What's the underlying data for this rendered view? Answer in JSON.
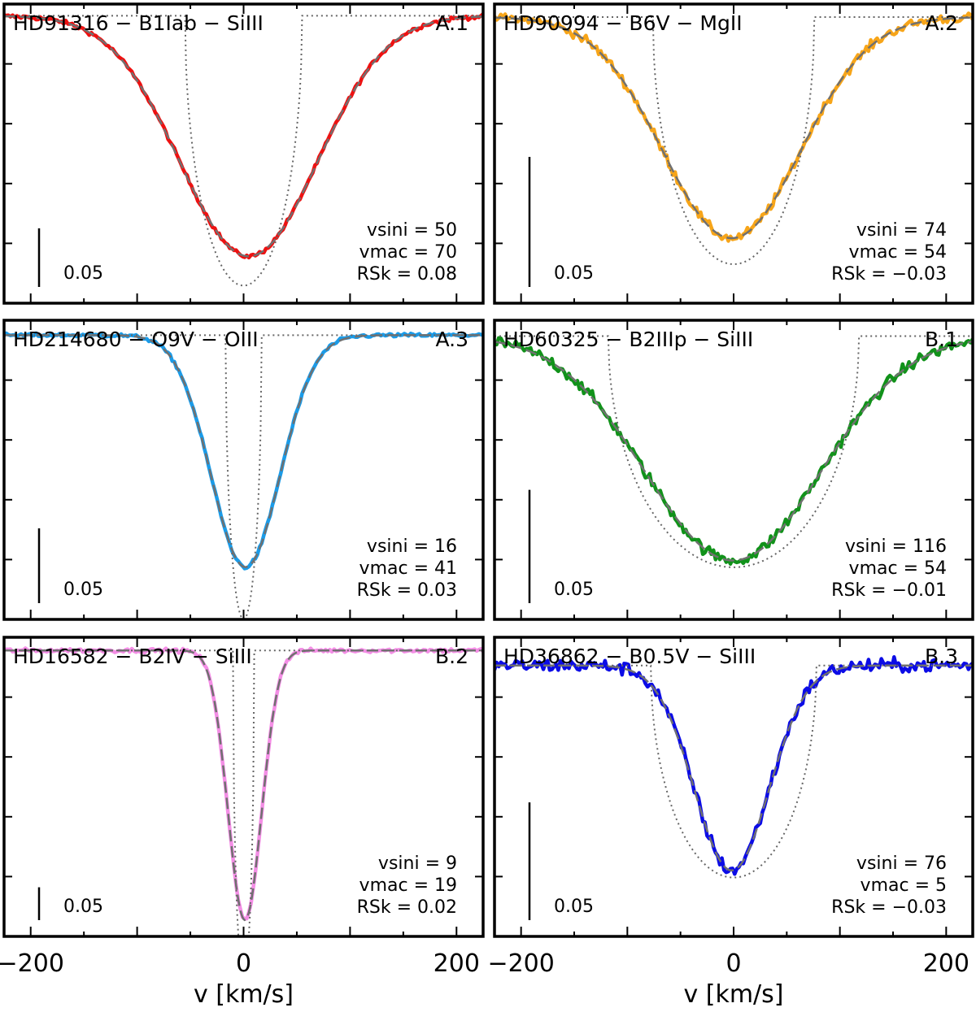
{
  "figure": {
    "xlabel": "v [km/s]",
    "xlim": [
      -225,
      225
    ],
    "xticks": [
      -200,
      0,
      200
    ],
    "xtick_labels": [
      "−200",
      "0",
      "200"
    ],
    "scale_bar_label": "0.05"
  },
  "chart_data": [
    {
      "type": "line",
      "id": "A.1",
      "title": "HD91316 − B1Iab − SiIII",
      "panel_label": "A.1",
      "star": "HD91316",
      "spectral_type": "B1Iab",
      "line": "SiIII",
      "color": "#ee1111",
      "vsini": 50,
      "vmac": 70,
      "rsk": 0.08,
      "stats": [
        "vsini = 50",
        "vmac = 70",
        "RSk = 0.08"
      ],
      "line_depth": 0.205,
      "rot_depth": 0.23,
      "rot_halfwidth": 55,
      "noise": 0.0018,
      "xlim": [
        -225,
        225
      ],
      "ylim": [
        0.755,
        1.01
      ],
      "scale_bar": 0.05,
      "xlabel": "v [km/s]"
    },
    {
      "type": "line",
      "id": "A.2",
      "title": "HD90994 − B6V − MgII",
      "panel_label": "A.2",
      "star": "HD90994",
      "spectral_type": "B6V",
      "line": "MgII",
      "color": "#f7a519",
      "vsini": 74,
      "vmac": 54,
      "rsk": -0.03,
      "stats": [
        "vsini = 74",
        "vmac = 54",
        "RSk = −0.03"
      ],
      "line_depth": 0.085,
      "rot_depth": 0.095,
      "rot_halfwidth": 76,
      "noise": 0.0018,
      "xlim": [
        -225,
        225
      ],
      "ylim": [
        0.89,
        1.005
      ],
      "scale_bar": 0.05,
      "xlabel": "v [km/s]"
    },
    {
      "type": "line",
      "id": "A.3",
      "title": "HD214680 − O9V − OIII",
      "panel_label": "A.3",
      "star": "HD214680",
      "spectral_type": "O9V",
      "line": "OIII",
      "color": "#1a9be8",
      "vsini": 16,
      "vmac": 41,
      "rsk": 0.03,
      "stats": [
        "vsini = 16",
        "vmac = 41",
        "RSk = 0.03"
      ],
      "line_depth": 0.155,
      "rot_depth": 0.19,
      "rot_halfwidth": 17,
      "noise": 0.0012,
      "xlim": [
        -225,
        225
      ],
      "ylim": [
        0.81,
        1.01
      ],
      "scale_bar": 0.05,
      "xlabel": "v [km/s]"
    },
    {
      "type": "line",
      "id": "B.1",
      "title": "HD60325 − B2IIIp − SiIII",
      "panel_label": "B.1",
      "star": "HD60325",
      "spectral_type": "B2IIIp",
      "line": "SiIII",
      "color": "#11921a",
      "vsini": 116,
      "vmac": 54,
      "rsk": -0.01,
      "stats": [
        "vsini = 116",
        "vmac = 54",
        "RSk = −0.01"
      ],
      "line_depth": 0.099,
      "rot_depth": 0.102,
      "rot_halfwidth": 118,
      "noise": 0.0025,
      "xlim": [
        -225,
        225
      ],
      "ylim": [
        0.875,
        1.007
      ],
      "scale_bar": 0.05,
      "xlabel": "v [km/s]"
    },
    {
      "type": "line",
      "id": "B.2",
      "title": "HD16582 − B2IV − SiIII",
      "panel_label": "B.2",
      "star": "HD16582",
      "spectral_type": "B2IV",
      "line": "SiIII",
      "color": "#f48ee6",
      "vsini": 9,
      "vmac": 19,
      "rsk": 0.02,
      "stats": [
        "vsini = 9",
        "vmac = 19",
        "RSk = 0.02"
      ],
      "line_depth": 0.41,
      "rot_depth": 0.5,
      "rot_halfwidth": 10,
      "noise": 0.003,
      "xlim": [
        -225,
        225
      ],
      "ylim": [
        0.565,
        1.02
      ],
      "scale_bar": 0.05,
      "xlabel": "v [km/s]"
    },
    {
      "type": "line",
      "id": "B.3",
      "title": "HD36862 − B0.5V − SiIII",
      "panel_label": "B.3",
      "star": "HD36862",
      "spectral_type": "B0.5V",
      "line": "SiIII",
      "color": "#0c0ce6",
      "vsini": 76,
      "vmac": 5,
      "rsk": -0.03,
      "stats": [
        "vsini = 76",
        "vmac = 5",
        "RSk = −0.03"
      ],
      "line_depth": 0.087,
      "rot_depth": 0.09,
      "rot_halfwidth": 78,
      "noise": 0.0028,
      "xlim": [
        -225,
        225
      ],
      "ylim": [
        0.885,
        1.012
      ],
      "scale_bar": 0.05,
      "xlabel": "v [km/s]"
    }
  ]
}
